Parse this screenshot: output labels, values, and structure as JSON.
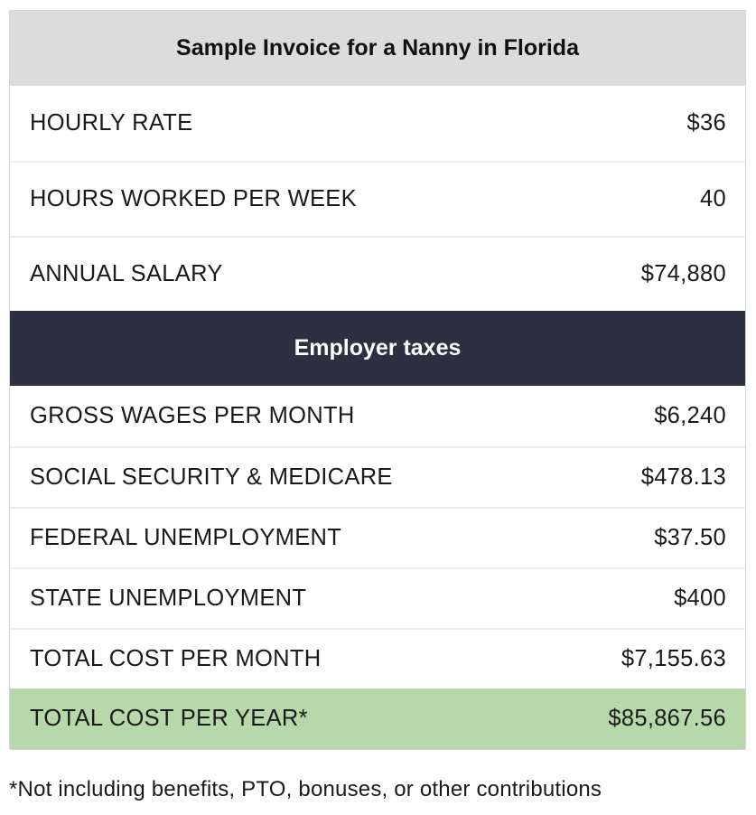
{
  "title": "Sample Invoice for a Nanny in Florida",
  "wage_rows": [
    {
      "label": "HOURLY RATE",
      "value": "$36"
    },
    {
      "label": "HOURS WORKED PER WEEK",
      "value": "40"
    },
    {
      "label": "ANNUAL SALARY",
      "value": "$74,880"
    }
  ],
  "section_title": "Employer taxes",
  "tax_rows": [
    {
      "label": "GROSS WAGES PER MONTH",
      "value": "$6,240"
    },
    {
      "label": "SOCIAL SECURITY & MEDICARE",
      "value": "$478.13"
    },
    {
      "label": "FEDERAL UNEMPLOYMENT",
      "value": "$37.50"
    },
    {
      "label": "STATE UNEMPLOYMENT",
      "value": "$400"
    },
    {
      "label": "TOTAL COST PER MONTH",
      "value": "$7,155.63"
    }
  ],
  "total_year": {
    "label": "TOTAL COST PER YEAR*",
    "value": "$85,867.56"
  },
  "footnote": "*Not including benefits, PTO, bonuses, or other contributions",
  "colors": {
    "title_bg": "#dcdcdc",
    "section_bg": "#2c3040",
    "total_bg": "#b7d8aa"
  }
}
